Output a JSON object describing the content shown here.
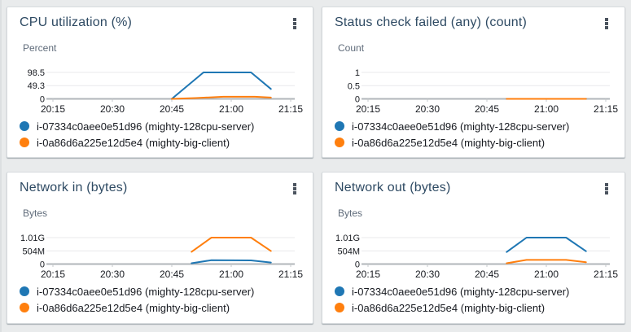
{
  "page": {
    "background": "#e9ebec"
  },
  "colors": {
    "title_text": "#2e4a63",
    "axis_text": "#16191f",
    "unit_text": "#5f6b7a",
    "gridline": "#e8e9eb",
    "axis_line": "#b1b6ba",
    "series_blue": "#1f77b4",
    "series_orange": "#ff7f0e",
    "kebab_icon": "#4b535e"
  },
  "icons": {
    "card_menu": "kebab-vertical-dots"
  },
  "legend": {
    "items": [
      {
        "label": "i-07334c0aee0e51d96 (mighty-128cpu-server)",
        "color": "#1f77b4"
      },
      {
        "label": "i-0a86d6a225e12d5e4 (mighty-big-client)",
        "color": "#ff7f0e"
      }
    ]
  },
  "chart_data": [
    {
      "type": "line",
      "title": "CPU utilization (%)",
      "ylabel": "Percent",
      "ylim": [
        0,
        147.8
      ],
      "grid": true,
      "legend_position": "bottom",
      "yticks": [
        {
          "value": 98.5,
          "label": "98.5"
        },
        {
          "value": 49.3,
          "label": "49.3"
        },
        {
          "value": 0,
          "label": "0"
        }
      ],
      "xticks": [
        {
          "t": 0,
          "label": "20:15"
        },
        {
          "t": 15,
          "label": "20:30"
        },
        {
          "t": 30,
          "label": "20:45"
        },
        {
          "t": 45,
          "label": "21:00"
        },
        {
          "t": 60,
          "label": "21:15"
        }
      ],
      "series": [
        {
          "name": "i-07334c0aee0e51d96 (mighty-128cpu-server)",
          "color": "#1f77b4",
          "points": [
            [
              30,
              0
            ],
            [
              38,
              98.5
            ],
            [
              50,
              98.5
            ],
            [
              55,
              37
            ]
          ]
        },
        {
          "name": "i-0a86d6a225e12d5e4 (mighty-big-client)",
          "color": "#ff7f0e",
          "points": [
            [
              30,
              0
            ],
            [
              36,
              3
            ],
            [
              43,
              8
            ],
            [
              51,
              8
            ],
            [
              55,
              5
            ]
          ]
        }
      ]
    },
    {
      "type": "line",
      "title": "Status check failed (any) (count)",
      "ylabel": "Count",
      "ylim": [
        0,
        1.5
      ],
      "grid": true,
      "legend_position": "bottom",
      "yticks": [
        {
          "value": 1,
          "label": "1"
        },
        {
          "value": 0.5,
          "label": "0.5"
        },
        {
          "value": 0,
          "label": "0"
        }
      ],
      "xticks": [
        {
          "t": 0,
          "label": "20:15"
        },
        {
          "t": 15,
          "label": "20:30"
        },
        {
          "t": 30,
          "label": "20:45"
        },
        {
          "t": 45,
          "label": "21:00"
        },
        {
          "t": 60,
          "label": "21:15"
        }
      ],
      "series": [
        {
          "name": "i-07334c0aee0e51d96 (mighty-128cpu-server)",
          "color": "#1f77b4",
          "points": [
            [
              35,
              0
            ],
            [
              55,
              0
            ]
          ]
        },
        {
          "name": "i-0a86d6a225e12d5e4 (mighty-big-client)",
          "color": "#ff7f0e",
          "points": [
            [
              35,
              0
            ],
            [
              55,
              0
            ]
          ]
        }
      ]
    },
    {
      "type": "line",
      "title": "Network in (bytes)",
      "ylabel": "Bytes",
      "ylim": [
        0,
        1515000000
      ],
      "grid": true,
      "legend_position": "bottom",
      "yticks": [
        {
          "value": 1010000000,
          "label": "1.01G"
        },
        {
          "value": 504000000,
          "label": "504M"
        },
        {
          "value": 0,
          "label": "0"
        }
      ],
      "xticks": [
        {
          "t": 0,
          "label": "20:15"
        },
        {
          "t": 15,
          "label": "20:30"
        },
        {
          "t": 30,
          "label": "20:45"
        },
        {
          "t": 45,
          "label": "21:00"
        },
        {
          "t": 60,
          "label": "21:15"
        }
      ],
      "series": [
        {
          "name": "i-07334c0aee0e51d96 (mighty-128cpu-server)",
          "color": "#1f77b4",
          "points": [
            [
              35,
              30000000
            ],
            [
              40,
              150000000
            ],
            [
              50,
              140000000
            ],
            [
              55,
              60000000
            ]
          ]
        },
        {
          "name": "i-0a86d6a225e12d5e4 (mighty-big-client)",
          "color": "#ff7f0e",
          "points": [
            [
              35,
              470000000
            ],
            [
              40,
              1010000000
            ],
            [
              50,
              1010000000
            ],
            [
              55,
              500000000
            ]
          ]
        }
      ]
    },
    {
      "type": "line",
      "title": "Network out (bytes)",
      "ylabel": "Bytes",
      "ylim": [
        0,
        1515000000
      ],
      "grid": true,
      "legend_position": "bottom",
      "yticks": [
        {
          "value": 1010000000,
          "label": "1.01G"
        },
        {
          "value": 504000000,
          "label": "504M"
        },
        {
          "value": 0,
          "label": "0"
        }
      ],
      "xticks": [
        {
          "t": 0,
          "label": "20:15"
        },
        {
          "t": 15,
          "label": "20:30"
        },
        {
          "t": 30,
          "label": "20:45"
        },
        {
          "t": 45,
          "label": "21:00"
        },
        {
          "t": 60,
          "label": "21:15"
        }
      ],
      "series": [
        {
          "name": "i-07334c0aee0e51d96 (mighty-128cpu-server)",
          "color": "#1f77b4",
          "points": [
            [
              35,
              460000000
            ],
            [
              40,
              1010000000
            ],
            [
              50,
              1010000000
            ],
            [
              55,
              490000000
            ]
          ]
        },
        {
          "name": "i-0a86d6a225e12d5e4 (mighty-big-client)",
          "color": "#ff7f0e",
          "points": [
            [
              35,
              30000000
            ],
            [
              40,
              160000000
            ],
            [
              50,
              160000000
            ],
            [
              55,
              70000000
            ]
          ]
        }
      ]
    }
  ]
}
